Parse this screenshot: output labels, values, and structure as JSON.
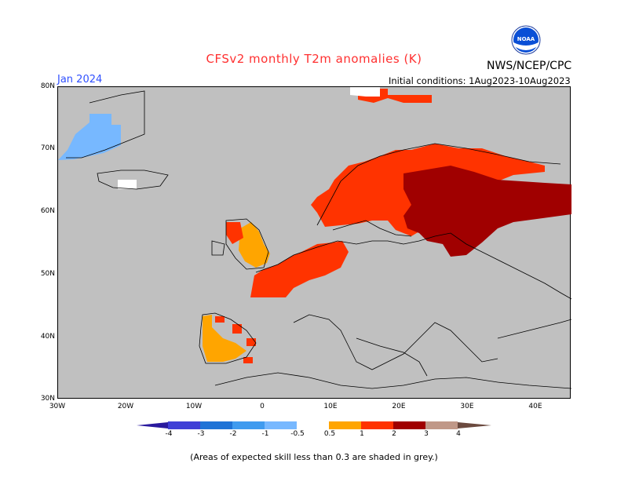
{
  "header": {
    "title": "CFSv2 monthly T2m anomalies (K)",
    "agency": "NWS/NCEP/CPC",
    "logo_text": "NOAA",
    "target_month": "Jan 2024",
    "initial_conditions": "Initial conditions: 1Aug2023-10Aug2023"
  },
  "map": {
    "lat_labels": [
      "80N",
      "70N",
      "60N",
      "50N",
      "40N",
      "30N"
    ],
    "lon_labels": [
      "30W",
      "20W",
      "10W",
      "0",
      "10E",
      "20E",
      "30E",
      "40E"
    ],
    "lon_range": [
      -30,
      45
    ],
    "lat_range": [
      30,
      80
    ],
    "background_color": "#c0c0c0",
    "regions": [
      {
        "name": "greenland-cold",
        "class": "-1 to -0.5",
        "color": "#77b8ff"
      },
      {
        "name": "iceland-neutral",
        "class": "-0.5 to 0.5",
        "color": "#ffffff"
      },
      {
        "name": "iberia-warm",
        "class": "0.5 to 1",
        "color": "#ffa500"
      },
      {
        "name": "uk-warm",
        "class": "0.5 to 1",
        "color": "#ffa500"
      },
      {
        "name": "western-europe-warm",
        "class": "1 to 2",
        "color": "#ff3300"
      },
      {
        "name": "scandinavia-warm",
        "class": "1 to 2",
        "color": "#ff3300"
      },
      {
        "name": "russia-baltic-hot",
        "class": "2 to 3",
        "color": "#a00000"
      },
      {
        "name": "svalbard-warm",
        "class": "1 to 2",
        "color": "#ff3300"
      }
    ]
  },
  "colorbar": {
    "labels": [
      "-4",
      "-3",
      "-2",
      "-1",
      "-0.5",
      "0.5",
      "1",
      "2",
      "3",
      "4"
    ],
    "colors": [
      "#2a1a9e",
      "#3f3fd6",
      "#1f73d6",
      "#3f9bef",
      "#77b8ff",
      "#ffffff",
      "#ffa500",
      "#ff3300",
      "#a00000",
      "#c09888",
      "#6b4a3f"
    ]
  },
  "footer": {
    "note": "(Areas of expected skill less than 0.3 are shaded in grey.)"
  }
}
